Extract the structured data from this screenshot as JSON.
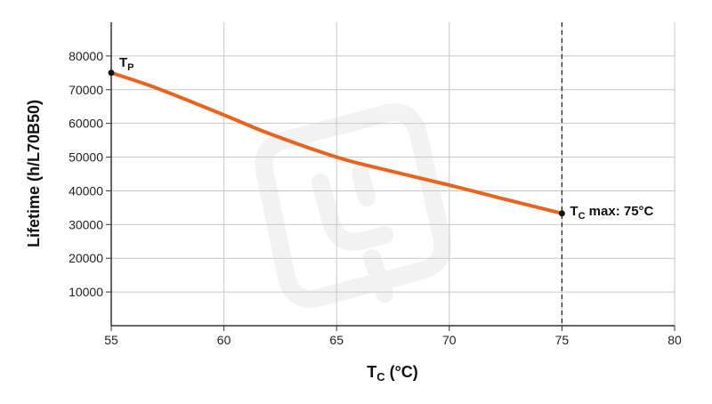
{
  "chart_data": {
    "type": "line",
    "xlabel": {
      "main": "T",
      "sub": "C",
      "unit": " (°C)"
    },
    "ylabel": "Lifetime (h/L70B50)",
    "xlim": [
      55,
      80
    ],
    "ylim": [
      0,
      90000
    ],
    "xticks": [
      55,
      60,
      65,
      70,
      75,
      80
    ],
    "yticks": [
      10000,
      20000,
      30000,
      40000,
      50000,
      60000,
      70000,
      80000
    ],
    "ytick_labels": [
      "10000",
      "20000",
      "30000",
      "40000",
      "50000",
      "60000",
      "70000",
      "80000"
    ],
    "grid": true,
    "series": [
      {
        "color": "#e8641e",
        "x": [
          55,
          57,
          60,
          62,
          65,
          67,
          70,
          72,
          75
        ],
        "y": [
          75000,
          70500,
          62500,
          57000,
          50000,
          46500,
          41700,
          38300,
          33300
        ]
      }
    ],
    "vline": {
      "x": 75,
      "style": "dashed"
    },
    "annotations": [
      {
        "id": "tp",
        "x": 55,
        "y": 75000,
        "main": "T",
        "sub": "P",
        "rest": ""
      },
      {
        "id": "tcmax",
        "x": 75,
        "y": 33300,
        "main": "T",
        "sub": "C",
        "rest": " max: 75°C"
      }
    ]
  }
}
